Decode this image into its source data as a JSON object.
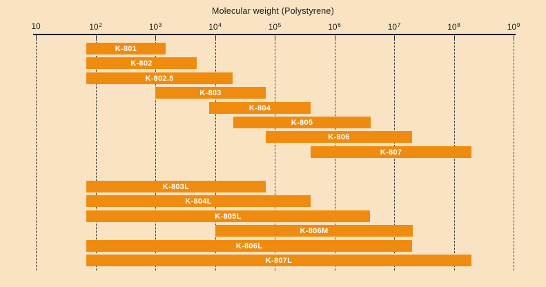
{
  "title": "Molecular weight (Polystyrene)",
  "axis": {
    "base": "10",
    "exponents": [
      "",
      "2",
      "3",
      "4",
      "5",
      "6",
      "7",
      "8",
      "9"
    ],
    "log_min": 1,
    "log_max": 9
  },
  "chart_data": {
    "type": "bar",
    "subtype": "horizontal-range-bars",
    "xscale": "log",
    "title": "Molecular weight (Polystyrene)",
    "xlim": [
      10,
      1000000000
    ],
    "grid": "vertical-dashed-at-each-decade",
    "legend": "none",
    "groups": [
      {
        "bars": [
          {
            "label": "K-801",
            "mw_min": 70,
            "mw_max": 1500
          },
          {
            "label": "K-802",
            "mw_min": 70,
            "mw_max": 5000
          },
          {
            "label": "K-802.5",
            "mw_min": 70,
            "mw_max": 20000
          },
          {
            "label": "K-803",
            "mw_min": 1000,
            "mw_max": 70000
          },
          {
            "label": "K-804",
            "mw_min": 8000,
            "mw_max": 400000
          },
          {
            "label": "K-805",
            "mw_min": 20000,
            "mw_max": 4000000
          },
          {
            "label": "K-806",
            "mw_min": 70000,
            "mw_max": 20000000
          },
          {
            "label": "K-807",
            "mw_min": 400000,
            "mw_max": 200000000
          }
        ]
      },
      {
        "bars": [
          {
            "label": "K-803L",
            "mw_min": 70,
            "mw_max": 70000
          },
          {
            "label": "K-804L",
            "mw_min": 70,
            "mw_max": 400000
          },
          {
            "label": "K-805L",
            "mw_min": 70,
            "mw_max": 4000000
          },
          {
            "label": "K-806M",
            "mw_min": 10000,
            "mw_max": 20000000
          },
          {
            "label": "K-806L",
            "mw_min": 70,
            "mw_max": 20000000
          },
          {
            "label": "K-807L",
            "mw_min": 70,
            "mw_max": 200000000
          }
        ]
      }
    ]
  },
  "colors": {
    "background": "#F9E3C3",
    "bar": "#EF8C10",
    "bar_label": "#FFFFFF",
    "axis": "#1C1C1C",
    "gridline": "#3A3A3A",
    "text": "#1C1C1C"
  }
}
